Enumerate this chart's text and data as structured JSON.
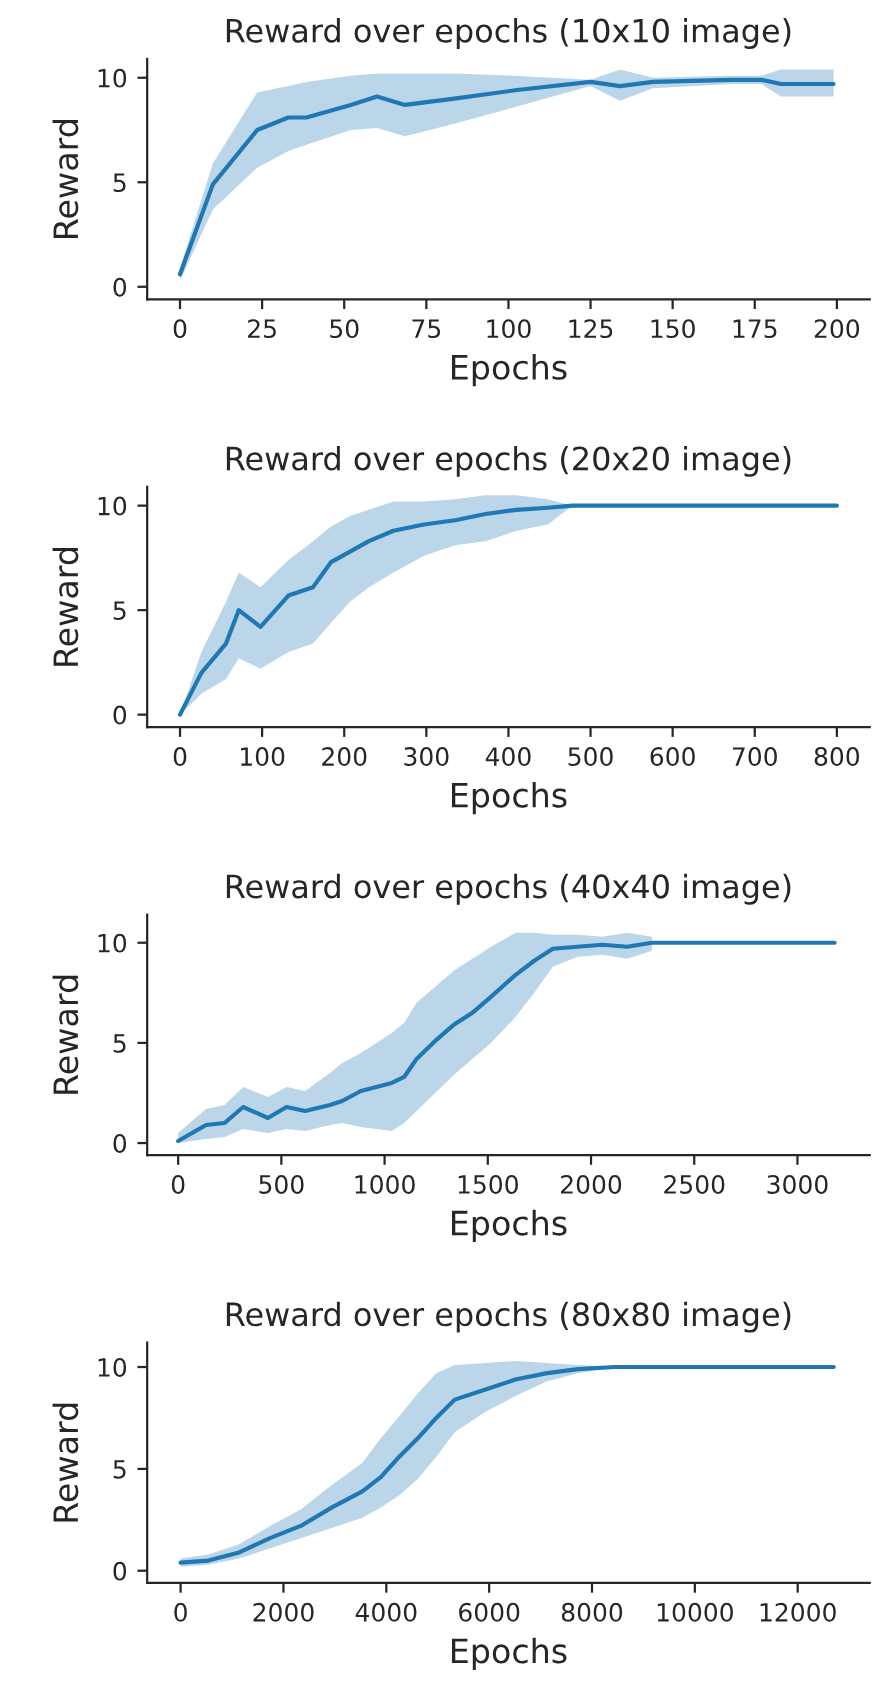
{
  "chart_data": [
    {
      "type": "line",
      "title": "Reward over epochs (10x10 image)",
      "xlabel": "Epochs",
      "ylabel": "Reward",
      "xlim": [
        -10,
        210
      ],
      "xticks": [
        0,
        25,
        50,
        75,
        100,
        125,
        150,
        175,
        200
      ],
      "ylim": [
        -0.6,
        10.9
      ],
      "yticks": [
        0,
        5,
        10
      ],
      "grid": false,
      "legend": false,
      "series": [
        {
          "color": "#1f77b4",
          "x": [
            0,
            10,
            23.5,
            33,
            38.5,
            52,
            60,
            68.5,
            83.5,
            102,
            125,
            134,
            144,
            168,
            177,
            183,
            199
          ],
          "values": [
            0.6,
            4.9,
            7.5,
            8.1,
            8.1,
            8.7,
            9.1,
            8.7,
            9.0,
            9.4,
            9.8,
            9.6,
            9.8,
            9.9,
            9.9,
            9.7,
            9.7
          ],
          "lower": [
            0.3,
            3.7,
            5.7,
            6.5,
            6.8,
            7.5,
            7.6,
            7.2,
            7.8,
            8.6,
            9.6,
            8.9,
            9.5,
            9.7,
            9.7,
            9.1,
            9.1
          ],
          "upper": [
            0.9,
            5.9,
            9.3,
            9.6,
            9.8,
            10.1,
            10.2,
            10.2,
            10.2,
            10.1,
            9.9,
            10.4,
            10.0,
            10.1,
            10.1,
            10.4,
            10.4
          ]
        }
      ]
    },
    {
      "type": "line",
      "title": "Reward over epochs (20x20 image)",
      "xlabel": "Epochs",
      "ylabel": "Reward",
      "xlim": [
        -40,
        840
      ],
      "xticks": [
        0,
        100,
        200,
        300,
        400,
        500,
        600,
        700,
        800
      ],
      "ylim": [
        -0.6,
        10.9
      ],
      "yticks": [
        0,
        5,
        10
      ],
      "grid": false,
      "legend": false,
      "series": [
        {
          "color": "#1f77b4",
          "x": [
            0,
            26,
            56,
            71.5,
            98,
            132,
            162,
            184,
            207,
            230,
            260,
            297,
            335,
            372,
            410,
            448,
            478,
            800
          ],
          "values": [
            0,
            2.0,
            3.4,
            5.0,
            4.2,
            5.7,
            6.1,
            7.3,
            7.8,
            8.3,
            8.8,
            9.1,
            9.3,
            9.6,
            9.8,
            9.9,
            10,
            10
          ],
          "lower": [
            0,
            1.0,
            1.7,
            2.7,
            2.2,
            3.0,
            3.4,
            4.4,
            5.4,
            6.1,
            6.8,
            7.6,
            8.1,
            8.3,
            8.8,
            9.1,
            10,
            null
          ],
          "upper": [
            0,
            3.0,
            5.4,
            6.8,
            6.1,
            7.4,
            8.3,
            9.0,
            9.5,
            9.8,
            10.2,
            10.2,
            10.3,
            10.5,
            10.5,
            10.3,
            10,
            null
          ]
        }
      ]
    },
    {
      "type": "line",
      "title": "Reward over epochs (40x40 image)",
      "xlabel": "Epochs",
      "ylabel": "Reward",
      "xlim": [
        -150,
        3350
      ],
      "xticks": [
        0,
        500,
        1000,
        1500,
        2000,
        2500,
        3000
      ],
      "ylim": [
        -0.6,
        11.4
      ],
      "yticks": [
        0,
        5,
        10
      ],
      "grid": false,
      "legend": false,
      "series": [
        {
          "color": "#1f77b4",
          "x": [
            0,
            135,
            225,
            315,
            435,
            525,
            615,
            735,
            795,
            885,
            1035,
            1095,
            1155,
            1245,
            1335,
            1425,
            1515,
            1635,
            1725,
            1815,
            1935,
            2055,
            2175,
            2295,
            3180
          ],
          "values": [
            0.1,
            0.9,
            1.0,
            1.8,
            1.25,
            1.8,
            1.6,
            1.9,
            2.1,
            2.6,
            3.0,
            3.3,
            4.2,
            5.1,
            5.9,
            6.5,
            7.3,
            8.4,
            9.1,
            9.7,
            9.8,
            9.9,
            9.8,
            10.0,
            10.0
          ],
          "lower": [
            0,
            0.2,
            0.3,
            0.7,
            0.5,
            0.7,
            0.6,
            0.9,
            1.0,
            0.8,
            0.6,
            1.0,
            1.6,
            2.5,
            3.4,
            4.2,
            5.0,
            6.3,
            7.5,
            8.8,
            9.3,
            9.4,
            9.2,
            9.6,
            null
          ],
          "upper": [
            0.5,
            1.7,
            1.9,
            2.8,
            2.3,
            2.8,
            2.6,
            3.5,
            4.0,
            4.5,
            5.5,
            6.0,
            7.0,
            7.8,
            8.6,
            9.2,
            9.8,
            10.5,
            10.5,
            10.4,
            10.4,
            10.3,
            10.5,
            10.3,
            null
          ]
        }
      ]
    },
    {
      "type": "line",
      "title": "Reward over epochs (80x80 image)",
      "xlabel": "Epochs",
      "ylabel": "Reward",
      "xlim": [
        -650,
        13400
      ],
      "xticks": [
        0,
        2000,
        4000,
        6000,
        8000,
        10000,
        12000
      ],
      "ylim": [
        -0.6,
        11.2
      ],
      "yticks": [
        0,
        5,
        10
      ],
      "grid": false,
      "legend": false,
      "series": [
        {
          "color": "#1f77b4",
          "x": [
            0,
            539,
            1138,
            1737,
            2336,
            2935,
            3534,
            3893,
            4253,
            4612,
            4971,
            5331,
            5930,
            6529,
            7128,
            7727,
            8446,
            12700
          ],
          "values": [
            0.4,
            0.5,
            0.9,
            1.6,
            2.2,
            3.1,
            3.9,
            4.6,
            5.6,
            6.5,
            7.5,
            8.4,
            8.9,
            9.4,
            9.7,
            9.9,
            10,
            10
          ],
          "lower": [
            0.2,
            0.3,
            0.6,
            1.1,
            1.6,
            2.1,
            2.6,
            3.1,
            3.7,
            4.5,
            5.6,
            6.8,
            7.8,
            8.6,
            9.3,
            9.7,
            10,
            null
          ],
          "upper": [
            0.6,
            0.8,
            1.3,
            2.2,
            3.0,
            4.2,
            5.3,
            6.5,
            7.6,
            8.7,
            9.7,
            10.1,
            10.2,
            10.3,
            10.2,
            10.1,
            10,
            null
          ]
        }
      ]
    }
  ]
}
